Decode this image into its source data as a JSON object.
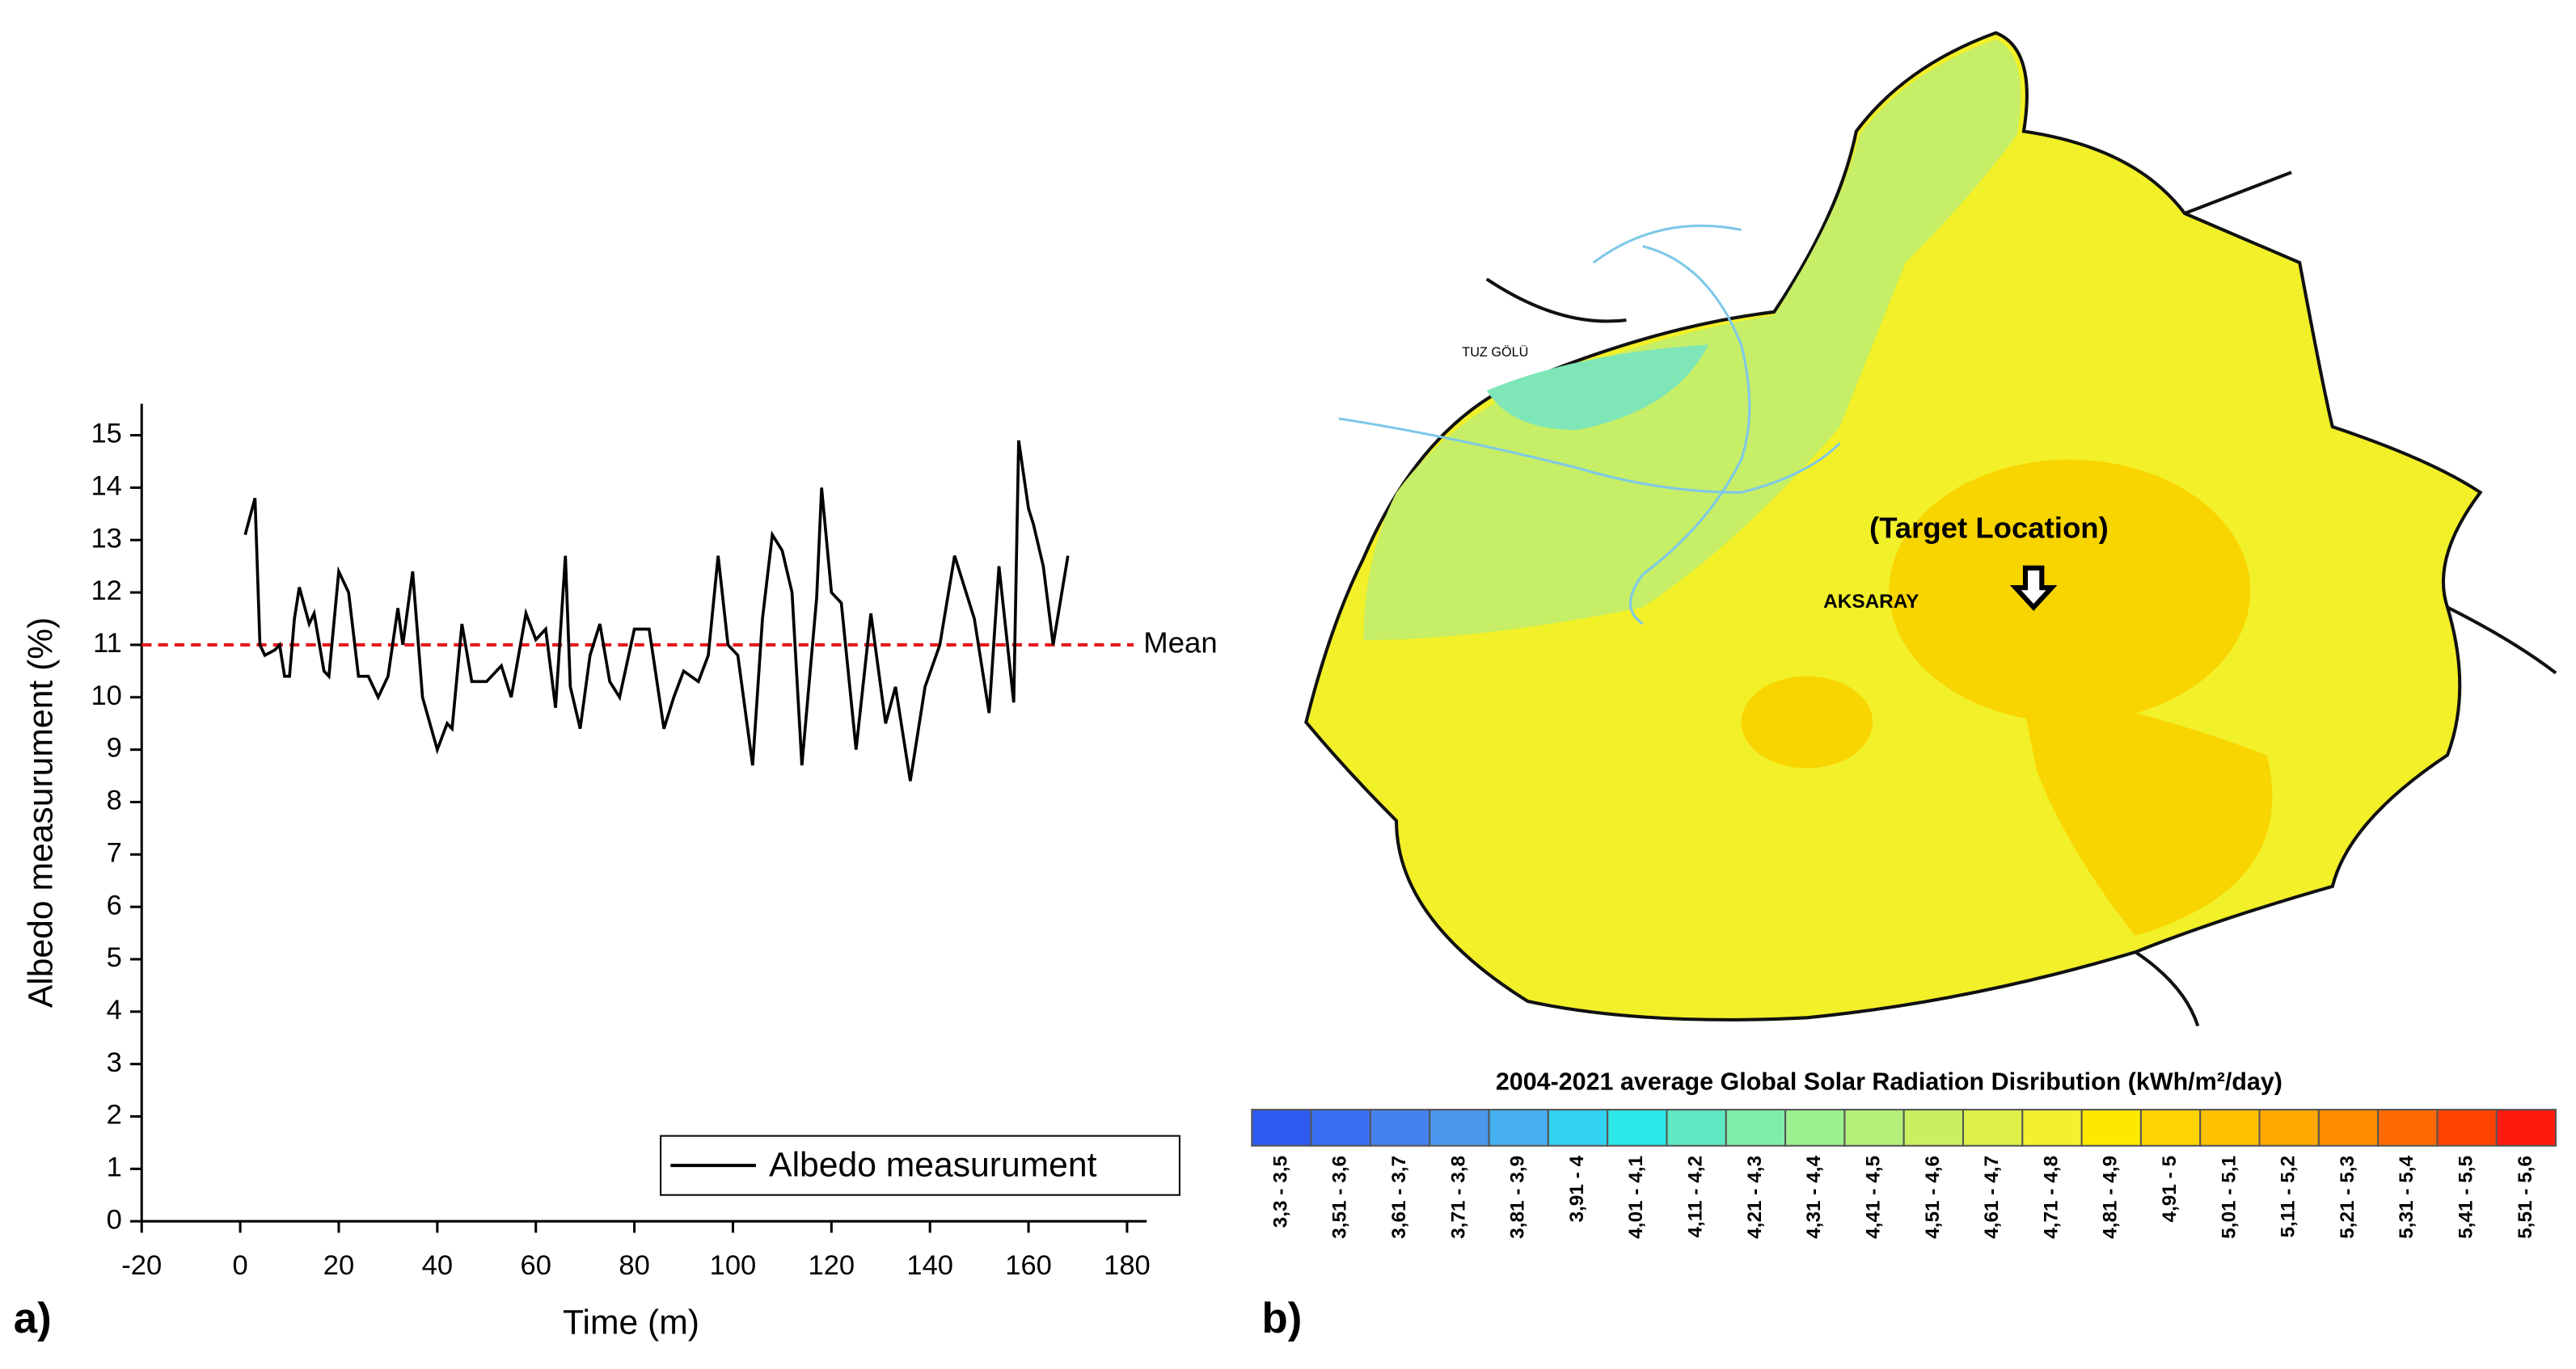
{
  "chart_data": [
    {
      "type": "line",
      "x_label": "Time (m)",
      "y_label": "Albedo measurument (%)",
      "panel_label": "a)",
      "x": [
        1,
        3,
        4,
        5,
        7,
        8,
        9,
        10,
        11,
        12,
        14,
        15,
        17,
        18,
        20,
        22,
        24,
        26,
        28,
        30,
        32,
        33,
        35,
        37,
        40,
        42,
        43,
        45,
        47,
        50,
        53,
        55,
        58,
        60,
        62,
        64,
        66,
        67,
        69,
        71,
        73,
        75,
        77,
        80,
        83,
        86,
        88,
        90,
        93,
        95,
        97,
        99,
        101,
        104,
        106,
        108,
        110,
        112,
        114,
        117,
        118,
        120,
        122,
        125,
        128,
        131,
        133,
        136,
        139,
        142,
        145,
        149,
        152,
        154,
        157,
        158,
        160,
        161,
        163,
        165,
        168
      ],
      "series": [
        {
          "name": "Albedo measurument",
          "color": "#000000",
          "values": [
            13.1,
            13.8,
            11.0,
            10.8,
            10.9,
            11.0,
            10.4,
            10.4,
            11.5,
            12.1,
            11.4,
            11.6,
            10.5,
            10.4,
            12.4,
            12.0,
            10.4,
            10.4,
            10.0,
            10.4,
            11.7,
            11.0,
            12.4,
            10.0,
            9.0,
            9.5,
            9.4,
            11.4,
            10.3,
            10.3,
            10.6,
            10.0,
            11.6,
            11.1,
            11.3,
            9.8,
            12.7,
            10.2,
            9.4,
            10.8,
            11.4,
            10.3,
            10.0,
            11.3,
            11.3,
            9.4,
            10.0,
            10.5,
            10.3,
            10.8,
            12.7,
            11.0,
            10.8,
            8.7,
            11.5,
            13.1,
            12.8,
            12.0,
            8.7,
            11.9,
            14.0,
            12.0,
            11.8,
            9.0,
            11.6,
            9.5,
            10.2,
            8.4,
            10.2,
            11.0,
            12.7,
            11.5,
            9.7,
            12.5,
            9.9,
            14.9,
            13.6,
            13.3,
            12.5,
            11.0,
            12.7
          ]
        }
      ],
      "xlim": [
        -20,
        184
      ],
      "xticks": [
        -20,
        0,
        20,
        40,
        60,
        80,
        100,
        120,
        140,
        160,
        180
      ],
      "ylim": [
        0,
        15.6
      ],
      "yticks": [
        0,
        1,
        2,
        3,
        4,
        5,
        6,
        7,
        8,
        9,
        10,
        11,
        12,
        13,
        14,
        15
      ],
      "reference_line": {
        "value": 11,
        "label": "Mean",
        "color": "#e31a1c"
      },
      "legend": "lower right"
    }
  ],
  "map": {
    "panel_label": "b)",
    "lake": "TUZ GÖLÜ",
    "city": "AKSARAY",
    "target": "(Target Location)",
    "legend": {
      "title": "2004-2021 average Global Solar Radiation Disribution (kWh/m²/day)",
      "items": [
        {
          "label": "3,3 - 3,5",
          "color": "#2e5cf0"
        },
        {
          "label": "3,51 - 3,6",
          "color": "#3a6ef2"
        },
        {
          "label": "3,61 - 3,7",
          "color": "#4482f0"
        },
        {
          "label": "3,71 - 3,8",
          "color": "#4a97ee"
        },
        {
          "label": "3,81 - 3,9",
          "color": "#46b0f0"
        },
        {
          "label": "3,91 - 4",
          "color": "#30d2f0"
        },
        {
          "label": "4,01 - 4,1",
          "color": "#2ce8e8"
        },
        {
          "label": "4,11 - 4,2",
          "color": "#5ee8c4"
        },
        {
          "label": "4,21 - 4,3",
          "color": "#80eeaa"
        },
        {
          "label": "4,31 - 4,4",
          "color": "#9cf090"
        },
        {
          "label": "4,41 - 4,5",
          "color": "#b4f07a"
        },
        {
          "label": "4,51 - 4,6",
          "color": "#caf060"
        },
        {
          "label": "4,61 - 4,7",
          "color": "#e0f048"
        },
        {
          "label": "4,71 - 4,8",
          "color": "#f4f030"
        },
        {
          "label": "4,81 - 4,9",
          "color": "#ffe800"
        },
        {
          "label": "4,91 - 5",
          "color": "#ffd400"
        },
        {
          "label": "5,01 - 5,1",
          "color": "#ffc000"
        },
        {
          "label": "5,11 - 5,2",
          "color": "#ffa800"
        },
        {
          "label": "5,21 - 5,3",
          "color": "#ff8c00"
        },
        {
          "label": "5,31 - 5,4",
          "color": "#ff6a00"
        },
        {
          "label": "5,41 - 5,5",
          "color": "#ff4400"
        },
        {
          "label": "5,51 - 5,6",
          "color": "#ff1a10"
        }
      ]
    }
  }
}
